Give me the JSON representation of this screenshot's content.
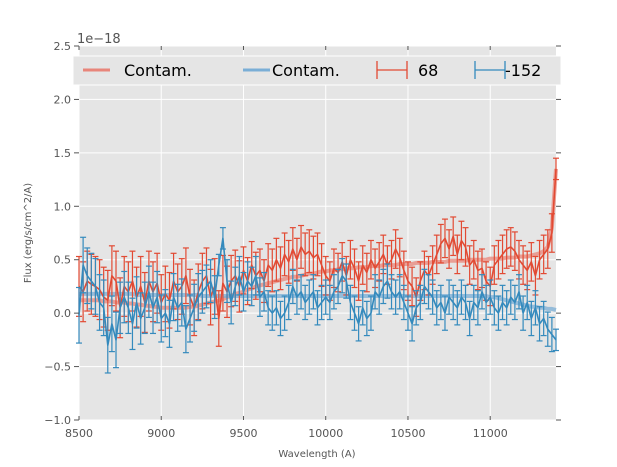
{
  "chart_data": {
    "type": "line",
    "title": "",
    "xlabel": "Wavelength (A)",
    "ylabel": "Flux (erg/s/cm^2/A)",
    "y_offset_label": "1e−18",
    "xlim": [
      8500,
      11400
    ],
    "ylim": [
      -1.0,
      2.5
    ],
    "x_ticks": [
      8500,
      9000,
      9500,
      10000,
      10500,
      11000
    ],
    "x_tick_labels": [
      "8500",
      "9000",
      "9500",
      "10000",
      "10500",
      "11000"
    ],
    "y_ticks": [
      -1.0,
      -0.5,
      0.0,
      0.5,
      1.0,
      1.5,
      2.0,
      2.5
    ],
    "y_tick_labels": [
      "−1.0",
      "−0.5",
      "0.0",
      "0.5",
      "1.0",
      "1.5",
      "2.0",
      "2.5"
    ],
    "grid": true,
    "legend_position": "top",
    "legend": [
      {
        "label": "Contam.",
        "kind": "line",
        "color": "#e8857a"
      },
      {
        "label": "Contam.",
        "kind": "line",
        "color": "#7aaed6"
      },
      {
        "label": "68",
        "kind": "errorbar",
        "color": "#e24a33"
      },
      {
        "label": "-152",
        "kind": "errorbar",
        "color": "#348abd"
      }
    ],
    "colors": {
      "background": "#e5e5e5",
      "grid": "#ffffff",
      "red": "#e24a33",
      "blue": "#348abd",
      "red_contam": "#e8857a",
      "blue_contam": "#7aaed6"
    },
    "x": [
      8500,
      8525,
      8550,
      8575,
      8600,
      8625,
      8650,
      8675,
      8700,
      8725,
      8750,
      8775,
      8800,
      8825,
      8850,
      8875,
      8900,
      8925,
      8950,
      8975,
      9000,
      9025,
      9050,
      9075,
      9100,
      9125,
      9150,
      9175,
      9200,
      9225,
      9250,
      9275,
      9300,
      9325,
      9350,
      9375,
      9400,
      9425,
      9450,
      9475,
      9500,
      9525,
      9550,
      9575,
      9600,
      9625,
      9650,
      9675,
      9700,
      9725,
      9750,
      9775,
      9800,
      9825,
      9850,
      9875,
      9900,
      9925,
      9950,
      9975,
      10000,
      10025,
      10050,
      10075,
      10100,
      10125,
      10150,
      10175,
      10200,
      10225,
      10250,
      10275,
      10300,
      10325,
      10350,
      10375,
      10400,
      10425,
      10450,
      10475,
      10500,
      10525,
      10550,
      10575,
      10600,
      10625,
      10650,
      10675,
      10700,
      10725,
      10750,
      10775,
      10800,
      10825,
      10850,
      10875,
      10900,
      10925,
      10950,
      10975,
      11000,
      11025,
      11050,
      11075,
      11100,
      11125,
      11150,
      11175,
      11200,
      11225,
      11250,
      11275,
      11300,
      11325,
      11350,
      11375,
      11400
    ],
    "series": [
      {
        "name": "68",
        "color": "#e24a33",
        "values": [
          0.25,
          0.2,
          0.3,
          0.27,
          0.25,
          0.22,
          0.15,
          0.12,
          0.35,
          0.3,
          0.05,
          0.25,
          0.2,
          0.3,
          0.15,
          0.25,
          0.1,
          0.3,
          0.2,
          0.28,
          0.1,
          0.18,
          0.12,
          0.3,
          0.2,
          0.25,
          0.35,
          0.15,
          0.05,
          0.2,
          0.3,
          0.35,
          0.15,
          0.25,
          -0.05,
          0.28,
          0.2,
          0.3,
          0.35,
          0.25,
          0.4,
          0.3,
          0.45,
          0.35,
          0.4,
          0.3,
          0.45,
          0.4,
          0.5,
          0.42,
          0.55,
          0.48,
          0.6,
          0.5,
          0.62,
          0.55,
          0.58,
          0.52,
          0.55,
          0.45,
          0.35,
          0.3,
          0.42,
          0.38,
          0.48,
          0.35,
          0.5,
          0.42,
          0.3,
          0.45,
          0.38,
          0.5,
          0.42,
          0.48,
          0.55,
          0.45,
          0.5,
          0.6,
          0.52,
          0.4,
          0.3,
          0.25,
          0.15,
          0.3,
          0.4,
          0.35,
          0.45,
          0.55,
          0.65,
          0.7,
          0.6,
          0.72,
          0.55,
          0.68,
          0.62,
          0.45,
          0.5,
          0.4,
          0.42,
          0.3,
          0.25,
          0.45,
          0.5,
          0.55,
          0.6,
          0.62,
          0.58,
          0.5,
          0.45,
          0.4,
          0.48,
          0.35,
          0.5,
          0.55,
          0.6,
          0.75,
          1.35
        ],
        "errors": [
          0.28,
          0.28,
          0.28,
          0.28,
          0.28,
          0.28,
          0.28,
          0.28,
          0.28,
          0.28,
          0.28,
          0.28,
          0.28,
          0.28,
          0.28,
          0.28,
          0.28,
          0.28,
          0.28,
          0.28,
          0.26,
          0.26,
          0.26,
          0.26,
          0.26,
          0.26,
          0.26,
          0.26,
          0.26,
          0.26,
          0.26,
          0.26,
          0.26,
          0.26,
          0.26,
          0.26,
          0.24,
          0.24,
          0.24,
          0.24,
          0.22,
          0.22,
          0.22,
          0.22,
          0.2,
          0.2,
          0.2,
          0.2,
          0.2,
          0.2,
          0.2,
          0.2,
          0.2,
          0.2,
          0.2,
          0.2,
          0.2,
          0.2,
          0.2,
          0.2,
          0.18,
          0.18,
          0.18,
          0.18,
          0.18,
          0.18,
          0.18,
          0.18,
          0.18,
          0.18,
          0.18,
          0.18,
          0.18,
          0.18,
          0.18,
          0.18,
          0.18,
          0.18,
          0.18,
          0.18,
          0.18,
          0.18,
          0.18,
          0.18,
          0.18,
          0.18,
          0.18,
          0.18,
          0.18,
          0.18,
          0.18,
          0.18,
          0.18,
          0.18,
          0.18,
          0.18,
          0.18,
          0.18,
          0.18,
          0.18,
          0.18,
          0.18,
          0.18,
          0.18,
          0.18,
          0.18,
          0.18,
          0.18,
          0.18,
          0.18,
          0.18,
          0.18,
          0.18,
          0.18,
          0.18,
          0.18,
          0.1
        ]
      },
      {
        "name": "-152",
        "color": "#348abd",
        "values": [
          -0.02,
          0.45,
          0.35,
          0.3,
          0.25,
          0.1,
          0.05,
          -0.3,
          -0.1,
          -0.25,
          0.05,
          0.15,
          0.05,
          -0.1,
          0.1,
          -0.05,
          0.05,
          0.2,
          0.05,
          0.15,
          -0.05,
          0.0,
          -0.1,
          0.15,
          0.05,
          0.1,
          -0.15,
          -0.05,
          0.05,
          0.15,
          0.2,
          0.25,
          0.3,
          0.15,
          0.45,
          0.7,
          0.3,
          0.1,
          0.25,
          0.35,
          0.2,
          0.3,
          0.25,
          0.35,
          0.15,
          0.2,
          0.05,
          0.0,
          0.05,
          -0.05,
          0.0,
          0.1,
          0.25,
          0.15,
          0.2,
          0.1,
          0.15,
          0.2,
          0.05,
          0.1,
          0.15,
          0.1,
          0.2,
          0.25,
          0.35,
          0.3,
          0.1,
          0.0,
          -0.1,
          0.05,
          -0.05,
          0.0,
          0.2,
          0.15,
          0.25,
          0.3,
          0.2,
          0.15,
          0.2,
          0.1,
          0.0,
          -0.1,
          0.05,
          0.1,
          0.25,
          0.2,
          0.15,
          0.05,
          0.1,
          0.0,
          0.15,
          0.1,
          0.05,
          0.15,
          0.1,
          -0.05,
          0.1,
          0.05,
          0.2,
          0.1,
          0.15,
          0.05,
          0.0,
          0.1,
          0.05,
          0.15,
          0.1,
          0.2,
          0.0,
          0.1,
          -0.05,
          0.05,
          -0.1,
          -0.05,
          -0.15,
          -0.2,
          -0.25
        ],
        "errors": [
          0.26,
          0.26,
          0.26,
          0.26,
          0.26,
          0.26,
          0.26,
          0.26,
          0.26,
          0.26,
          0.24,
          0.24,
          0.24,
          0.24,
          0.24,
          0.24,
          0.24,
          0.24,
          0.24,
          0.24,
          0.22,
          0.22,
          0.22,
          0.22,
          0.22,
          0.22,
          0.22,
          0.22,
          0.22,
          0.22,
          0.2,
          0.2,
          0.2,
          0.2,
          0.1,
          0.1,
          0.2,
          0.2,
          0.18,
          0.18,
          0.18,
          0.18,
          0.18,
          0.18,
          0.18,
          0.18,
          0.16,
          0.16,
          0.16,
          0.16,
          0.16,
          0.16,
          0.16,
          0.16,
          0.16,
          0.16,
          0.16,
          0.16,
          0.16,
          0.16,
          0.16,
          0.16,
          0.16,
          0.16,
          0.16,
          0.16,
          0.16,
          0.16,
          0.16,
          0.16,
          0.16,
          0.16,
          0.16,
          0.16,
          0.16,
          0.16,
          0.16,
          0.16,
          0.16,
          0.16,
          0.16,
          0.16,
          0.16,
          0.16,
          0.16,
          0.16,
          0.16,
          0.16,
          0.16,
          0.16,
          0.16,
          0.16,
          0.16,
          0.16,
          0.16,
          0.16,
          0.16,
          0.16,
          0.16,
          0.16,
          0.16,
          0.16,
          0.16,
          0.16,
          0.16,
          0.16,
          0.16,
          0.16,
          0.16,
          0.16,
          0.16,
          0.16,
          0.16,
          0.16,
          0.16,
          0.16,
          0.1
        ]
      },
      {
        "name": "Contam. (68)",
        "color": "#e8857a",
        "values": [
          0.12,
          0.12,
          0.12,
          0.12,
          0.12,
          0.12,
          0.11,
          0.11,
          0.11,
          0.1,
          0.1,
          0.1,
          0.09,
          0.09,
          0.08,
          0.08,
          0.07,
          0.07,
          0.06,
          0.06,
          0.05,
          0.05,
          0.05,
          0.05,
          0.05,
          0.05,
          0.05,
          0.06,
          0.06,
          0.07,
          0.08,
          0.09,
          0.1,
          0.11,
          0.12,
          0.13,
          0.15,
          0.16,
          0.18,
          0.19,
          0.2,
          0.22,
          0.23,
          0.25,
          0.26,
          0.27,
          0.28,
          0.29,
          0.3,
          0.31,
          0.32,
          0.33,
          0.34,
          0.34,
          0.35,
          0.36,
          0.37,
          0.37,
          0.38,
          0.39,
          0.39,
          0.4,
          0.4,
          0.41,
          0.41,
          0.42,
          0.42,
          0.42,
          0.43,
          0.43,
          0.43,
          0.44,
          0.44,
          0.44,
          0.45,
          0.45,
          0.45,
          0.45,
          0.46,
          0.46,
          0.46,
          0.46,
          0.47,
          0.47,
          0.47,
          0.47,
          0.48,
          0.48,
          0.48,
          0.48,
          0.49,
          0.49,
          0.49,
          0.49,
          0.49,
          0.5,
          0.5,
          0.5,
          0.5,
          0.5,
          0.51,
          0.51,
          0.51,
          0.51,
          0.52,
          0.52,
          0.52,
          0.53,
          0.53,
          0.53,
          0.54,
          0.55,
          0.56,
          0.58,
          0.62,
          0.8,
          1.35
        ]
      },
      {
        "name": "Contam. (-152)",
        "color": "#7aaed6",
        "values": [
          0.18,
          0.18,
          0.18,
          0.18,
          0.18,
          0.18,
          0.18,
          0.18,
          0.18,
          0.18,
          0.18,
          0.18,
          0.18,
          0.18,
          0.17,
          0.17,
          0.17,
          0.17,
          0.17,
          0.17,
          0.17,
          0.17,
          0.17,
          0.17,
          0.17,
          0.17,
          0.17,
          0.17,
          0.17,
          0.17,
          0.16,
          0.16,
          0.16,
          0.16,
          0.16,
          0.16,
          0.16,
          0.16,
          0.16,
          0.16,
          0.16,
          0.16,
          0.16,
          0.16,
          0.16,
          0.16,
          0.16,
          0.16,
          0.16,
          0.16,
          0.16,
          0.16,
          0.16,
          0.16,
          0.16,
          0.16,
          0.16,
          0.16,
          0.16,
          0.16,
          0.16,
          0.16,
          0.16,
          0.16,
          0.16,
          0.16,
          0.16,
          0.16,
          0.16,
          0.16,
          0.16,
          0.16,
          0.16,
          0.16,
          0.16,
          0.16,
          0.16,
          0.16,
          0.16,
          0.16,
          0.16,
          0.16,
          0.16,
          0.16,
          0.16,
          0.16,
          0.16,
          0.16,
          0.16,
          0.16,
          0.16,
          0.16,
          0.16,
          0.16,
          0.16,
          0.16,
          0.16,
          0.16,
          0.16,
          0.16,
          0.15,
          0.15,
          0.14,
          0.13,
          0.12,
          0.11,
          0.1,
          0.09,
          0.08,
          0.07,
          0.06,
          0.06,
          0.05,
          0.05,
          0.04,
          0.04,
          0.03
        ]
      }
    ]
  }
}
